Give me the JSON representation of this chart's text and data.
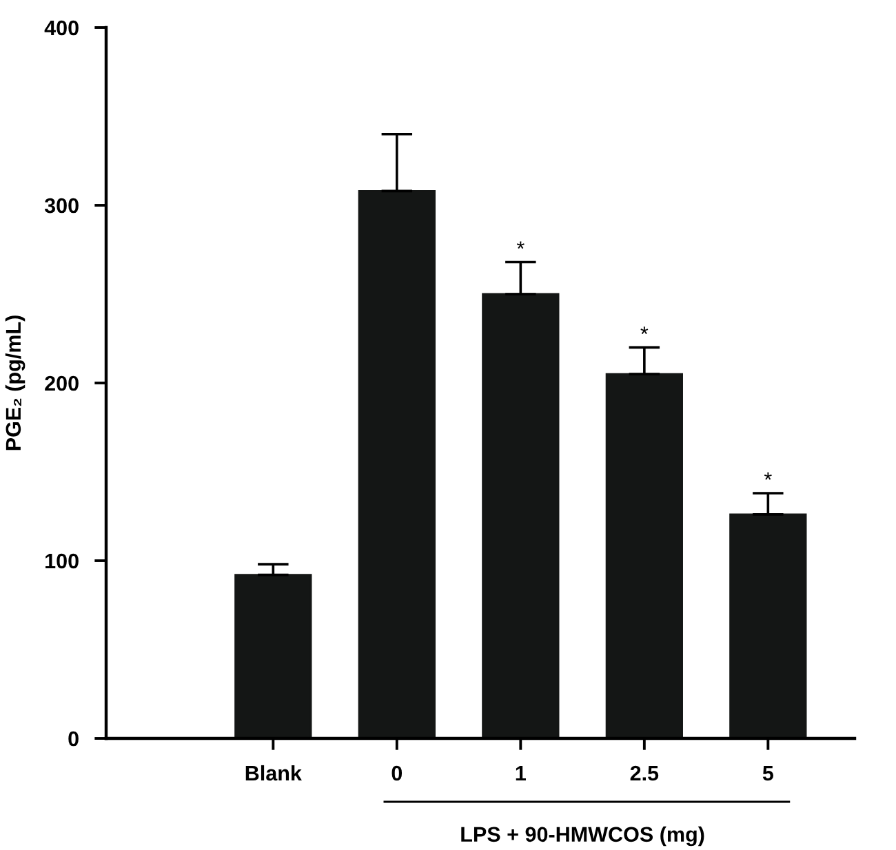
{
  "chart_data": {
    "type": "bar",
    "ylabel": "PGE₂ (pg/mL)",
    "xlabel": "LPS + 90-HMWCOS (mg)",
    "categories": [
      "Blank",
      "0",
      "1",
      "2.5",
      "5"
    ],
    "values": [
      92,
      308,
      250,
      205,
      126
    ],
    "errors": [
      [
        92,
        98
      ],
      [
        308,
        340
      ],
      [
        250,
        268
      ],
      [
        205,
        220
      ],
      [
        126,
        138
      ]
    ],
    "value_labels": [
      null,
      null,
      "*",
      "*",
      "*"
    ],
    "color": "#141615",
    "ylim": [
      0,
      400
    ],
    "yticks": [
      0,
      100,
      200,
      300,
      400
    ],
    "grid": false,
    "legend": false
  }
}
